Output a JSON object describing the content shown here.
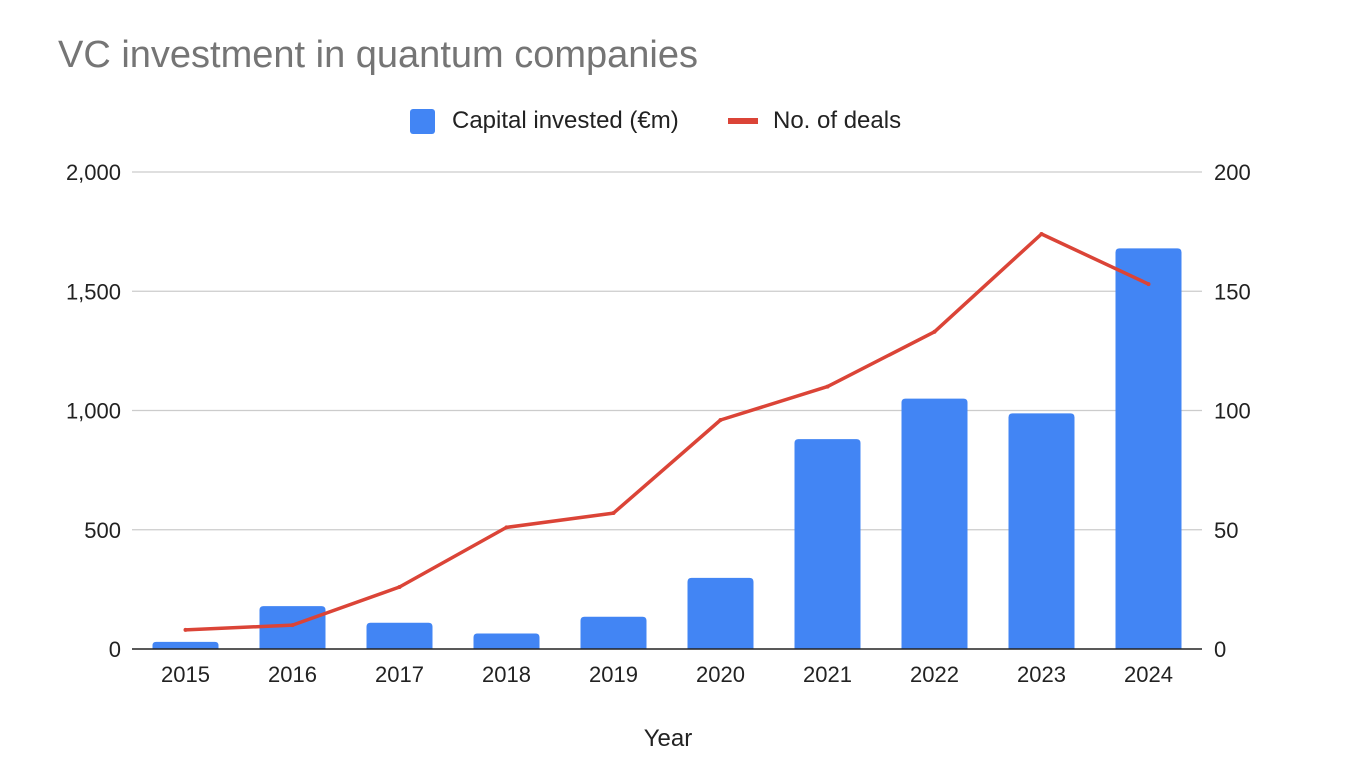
{
  "chart_data": {
    "type": "bar",
    "title": "VC investment in quantum companies",
    "xlabel": "Year",
    "ylabel": "",
    "ylabel_right": "",
    "categories": [
      "2015",
      "2016",
      "2017",
      "2018",
      "2019",
      "2020",
      "2021",
      "2022",
      "2023",
      "2024"
    ],
    "series": [
      {
        "name": "Capital invested (€m)",
        "type": "bar",
        "axis": "left",
        "color": "#4285f4",
        "values": [
          30,
          180,
          110,
          65,
          135,
          298,
          880,
          1050,
          988,
          1680
        ]
      },
      {
        "name": "No. of deals",
        "type": "line",
        "axis": "right",
        "color": "#db4437",
        "values": [
          8,
          10,
          26,
          51,
          57,
          96,
          110,
          133,
          174,
          153
        ]
      }
    ],
    "ylim": [
      0,
      2000
    ],
    "ylim_right": [
      0,
      200
    ],
    "y_ticks": [
      "0",
      "500",
      "1,000",
      "1,500",
      "2,000"
    ],
    "y_ticks_right": [
      "0",
      "50",
      "100",
      "150",
      "200"
    ],
    "grid": true,
    "legend_position": "top-center"
  }
}
